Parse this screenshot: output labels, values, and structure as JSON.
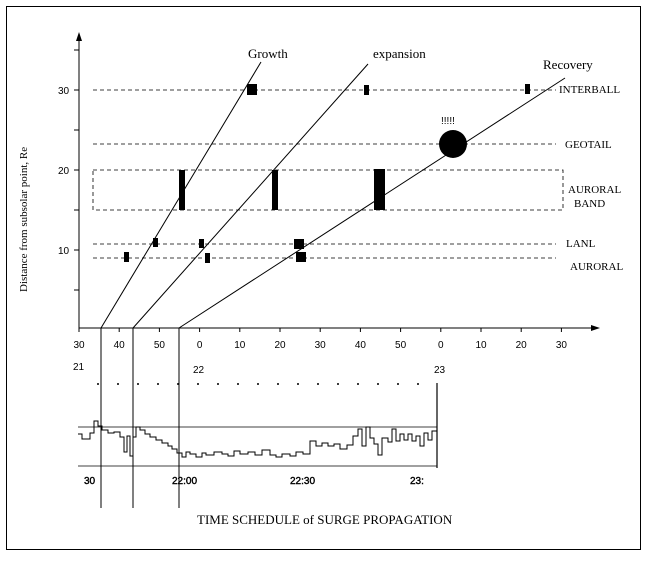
{
  "chart_data": {
    "type": "diagram",
    "title": "TIME SCHEDULE of SURGE PROPAGATION",
    "ylabel": "Distance from subsolar point, Re",
    "y_ticks": [
      "10",
      "20",
      "30"
    ],
    "x_ticks": [
      "30",
      "40",
      "50",
      "0",
      "10",
      "20",
      "30",
      "40",
      "50",
      "0",
      "10",
      "20",
      "30"
    ],
    "hour_labels": [
      "21",
      "22",
      "23"
    ],
    "phases": [
      "Growth",
      "expansion",
      "Recovery"
    ],
    "regions": [
      "INTERBALL",
      "GEOTAIL",
      "AURORAL",
      "BAND",
      "LANL",
      "AURORAL"
    ],
    "annotation": "!!!!!",
    "index_axis_labels": [
      "30",
      "22:00",
      "22:30",
      "23:"
    ]
  }
}
